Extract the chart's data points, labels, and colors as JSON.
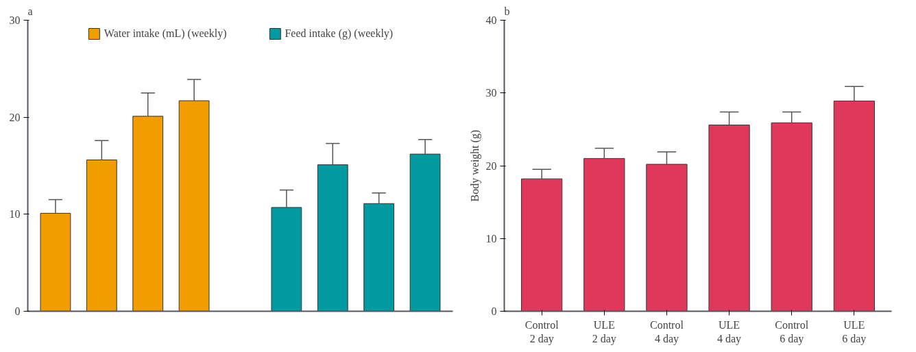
{
  "chart_data": [
    {
      "type": "bar",
      "title": "a",
      "categories": [
        null,
        null,
        null,
        null,
        null,
        null,
        null,
        null,
        null
      ],
      "series": [
        {
          "name": "Water intake (mL) (weekly)",
          "color": "#f39c00",
          "values": [
            10.1,
            15.6,
            20.1,
            21.7,
            null,
            null,
            null,
            null,
            null
          ],
          "errors": [
            [
              10.1,
              11.5
            ],
            [
              15.6,
              17.6
            ],
            [
              20.1,
              22.5
            ],
            [
              21.7,
              23.9
            ],
            null,
            null,
            null,
            null,
            null
          ]
        },
        {
          "name": "Feed intake (g) (weekly)",
          "color": "#009aa0",
          "values": [
            null,
            null,
            null,
            null,
            null,
            10.7,
            15.1,
            11.1,
            16.2
          ],
          "errors": [
            null,
            null,
            null,
            null,
            null,
            [
              10.7,
              12.5
            ],
            [
              15.1,
              17.3
            ],
            [
              11.1,
              12.2
            ],
            [
              16.2,
              17.7
            ]
          ]
        }
      ],
      "ylim": [
        0,
        30
      ],
      "yticks": [
        0,
        10,
        20,
        30
      ],
      "legend": "top",
      "grid": false
    },
    {
      "type": "bar",
      "title": "b",
      "ylabel": "Body weight (g)",
      "categories": [
        "Control\n2 day",
        "ULE\n2 day",
        "Control\n4 day",
        "ULE\n4 day",
        "Control\n6 day",
        "ULE\n6 day"
      ],
      "series": [
        {
          "color": "#e0385a",
          "values": [
            18.2,
            21.0,
            20.2,
            25.6,
            25.9,
            28.9
          ],
          "errors": [
            [
              18.2,
              19.5
            ],
            [
              21.0,
              22.4
            ],
            [
              20.2,
              21.9
            ],
            [
              25.6,
              27.4
            ],
            [
              25.9,
              27.4
            ],
            [
              28.9,
              30.9
            ]
          ]
        }
      ],
      "ylim": [
        0,
        40
      ],
      "yticks": [
        0,
        10,
        20,
        30,
        40
      ],
      "grid": false
    }
  ]
}
